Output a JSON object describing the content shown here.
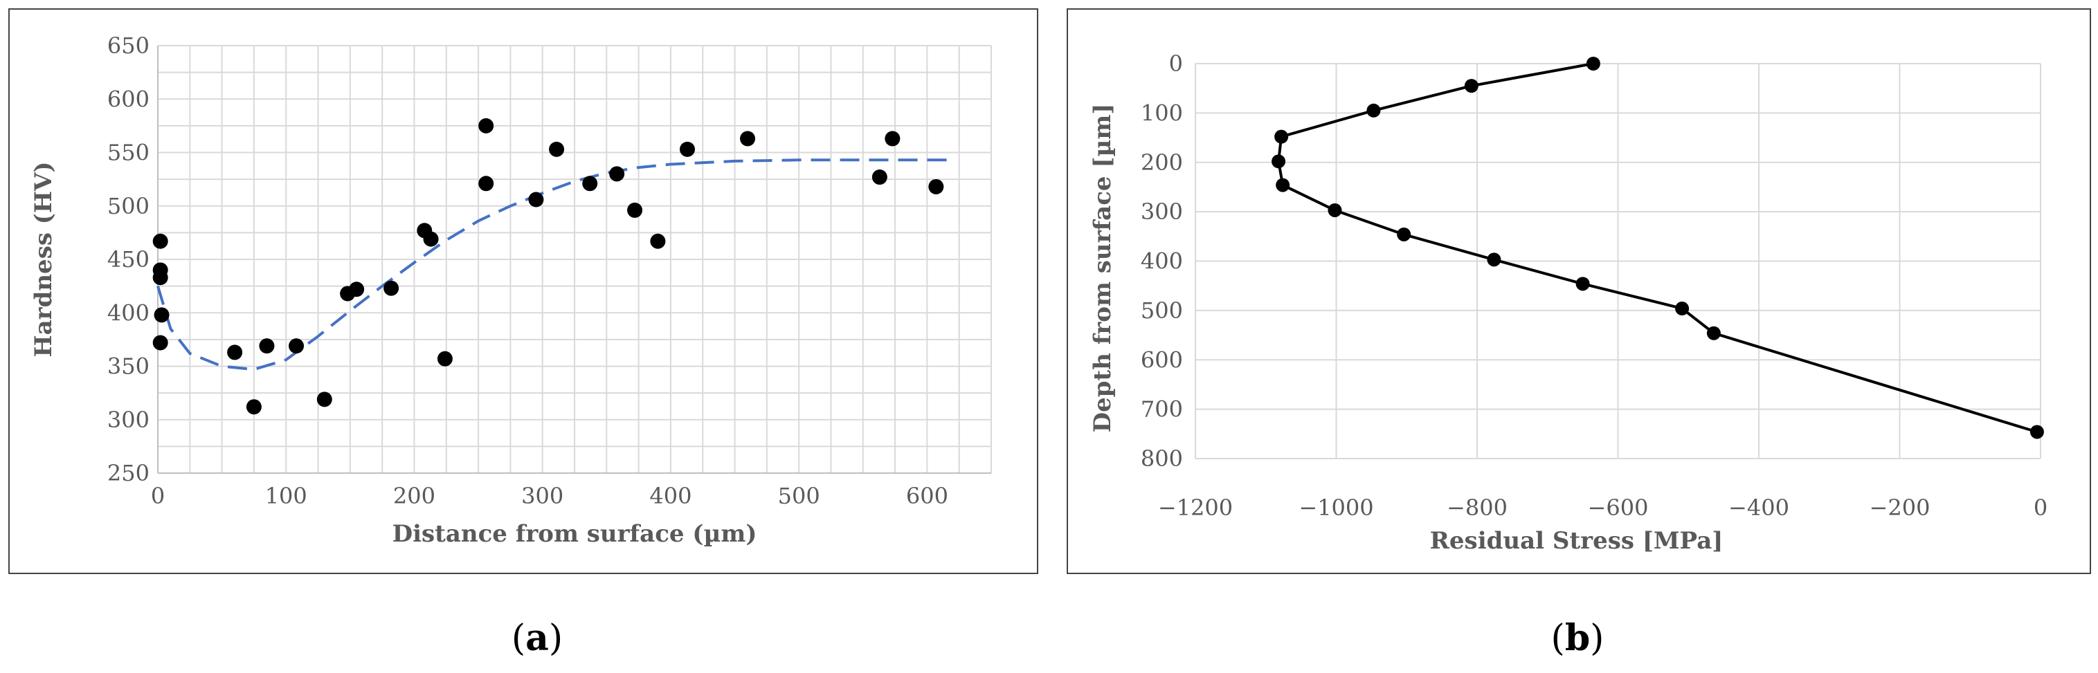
{
  "panels": [
    {
      "label_open": "(",
      "label_letter": "a",
      "label_close": ")"
    },
    {
      "label_open": "(",
      "label_letter": "b",
      "label_close": ")"
    }
  ],
  "chart_data": [
    {
      "type": "scatter",
      "title": "",
      "xlabel": "Distance from surface (µm)",
      "ylabel": "Hardness (HV)",
      "xlim": [
        0,
        650
      ],
      "ylim": [
        250,
        650
      ],
      "xticks": [
        0,
        100,
        200,
        300,
        400,
        500,
        600
      ],
      "yticks": [
        250,
        300,
        350,
        400,
        450,
        500,
        550,
        600,
        650
      ],
      "x_minor_step": 25,
      "y_minor_step": 25,
      "grid": true,
      "points": [
        {
          "x": 2,
          "y": 467
        },
        {
          "x": 2,
          "y": 440
        },
        {
          "x": 2,
          "y": 433
        },
        {
          "x": 3,
          "y": 398
        },
        {
          "x": 2,
          "y": 372
        },
        {
          "x": 60,
          "y": 363
        },
        {
          "x": 75,
          "y": 312
        },
        {
          "x": 85,
          "y": 369
        },
        {
          "x": 108,
          "y": 369
        },
        {
          "x": 130,
          "y": 319
        },
        {
          "x": 148,
          "y": 418
        },
        {
          "x": 155,
          "y": 422
        },
        {
          "x": 182,
          "y": 423
        },
        {
          "x": 208,
          "y": 477
        },
        {
          "x": 213,
          "y": 469
        },
        {
          "x": 224,
          "y": 357
        },
        {
          "x": 256,
          "y": 575
        },
        {
          "x": 256,
          "y": 521
        },
        {
          "x": 295,
          "y": 506
        },
        {
          "x": 311,
          "y": 553
        },
        {
          "x": 337,
          "y": 521
        },
        {
          "x": 358,
          "y": 530
        },
        {
          "x": 372,
          "y": 496
        },
        {
          "x": 390,
          "y": 467
        },
        {
          "x": 413,
          "y": 553
        },
        {
          "x": 460,
          "y": 563
        },
        {
          "x": 563,
          "y": 527
        },
        {
          "x": 573,
          "y": 563
        },
        {
          "x": 607,
          "y": 518
        }
      ],
      "trend": {
        "style": "dashed",
        "color": "#4472C4",
        "points": [
          {
            "x": 0,
            "y": 425
          },
          {
            "x": 10,
            "y": 385
          },
          {
            "x": 25,
            "y": 362
          },
          {
            "x": 50,
            "y": 350
          },
          {
            "x": 75,
            "y": 347
          },
          {
            "x": 100,
            "y": 356
          },
          {
            "x": 125,
            "y": 378
          },
          {
            "x": 150,
            "y": 402
          },
          {
            "x": 175,
            "y": 425
          },
          {
            "x": 200,
            "y": 447
          },
          {
            "x": 225,
            "y": 468
          },
          {
            "x": 250,
            "y": 486
          },
          {
            "x": 275,
            "y": 500
          },
          {
            "x": 300,
            "y": 512
          },
          {
            "x": 325,
            "y": 523
          },
          {
            "x": 350,
            "y": 531
          },
          {
            "x": 375,
            "y": 536
          },
          {
            "x": 400,
            "y": 539
          },
          {
            "x": 450,
            "y": 542
          },
          {
            "x": 500,
            "y": 543
          },
          {
            "x": 550,
            "y": 543
          },
          {
            "x": 620,
            "y": 543
          }
        ]
      }
    },
    {
      "type": "line",
      "title": "",
      "xlabel": "Residual Stress [MPa]",
      "ylabel": "Depth from surface [µm]",
      "xlim": [
        -1200,
        0
      ],
      "ylim": [
        0,
        800
      ],
      "y_inverted": true,
      "xticks": [
        -1200,
        -1000,
        -800,
        -600,
        -400,
        -200,
        0
      ],
      "xtick_labels": [
        "−1200",
        "−1000",
        "−800",
        "−600",
        "−400",
        "−200",
        "0"
      ],
      "yticks": [
        0,
        100,
        200,
        300,
        400,
        500,
        600,
        700,
        800
      ],
      "grid": true,
      "points": [
        {
          "x": -635,
          "y": 0
        },
        {
          "x": -808,
          "y": 45
        },
        {
          "x": -947,
          "y": 95
        },
        {
          "x": -1078,
          "y": 148
        },
        {
          "x": -1082,
          "y": 198
        },
        {
          "x": -1076,
          "y": 246
        },
        {
          "x": -1002,
          "y": 297
        },
        {
          "x": -904,
          "y": 346
        },
        {
          "x": -776,
          "y": 397
        },
        {
          "x": -650,
          "y": 446
        },
        {
          "x": -509,
          "y": 496
        },
        {
          "x": -464,
          "y": 546
        },
        {
          "x": -5,
          "y": 746
        }
      ]
    }
  ]
}
